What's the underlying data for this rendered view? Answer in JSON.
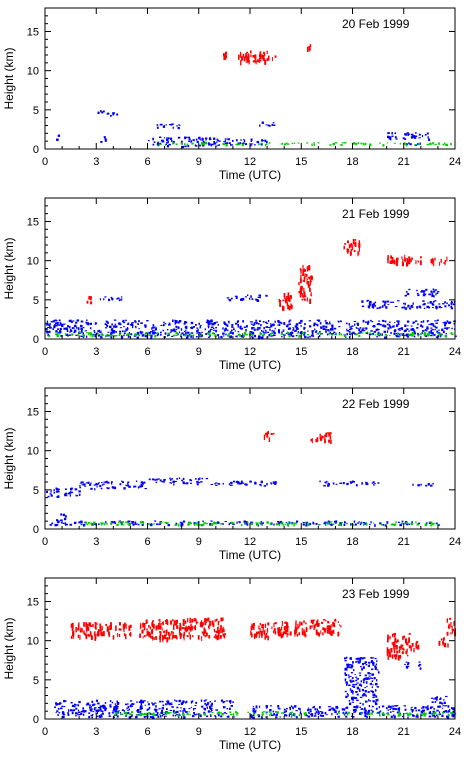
{
  "chart_data": [
    {
      "type": "scatter",
      "title": "20 Feb 1999",
      "xlabel": "Time (UTC)",
      "ylabel": "Height (km)",
      "xlim": [
        0,
        24
      ],
      "ylim": [
        0,
        18
      ],
      "xticks": [
        "0",
        "3",
        "6",
        "9",
        "12",
        "15",
        "18",
        "21",
        "24"
      ],
      "yticks": [
        "0",
        "5",
        "10",
        "15"
      ],
      "series": [
        {
          "color": "#ff0000",
          "segments": [
            {
              "x0": 10.4,
              "x1": 10.6,
              "y0": 11.8,
              "y1": 12.6
            },
            {
              "x0": 11.2,
              "x1": 13.5,
              "y0": 11.2,
              "y1": 12.6
            },
            {
              "x0": 15.3,
              "x1": 15.5,
              "y0": 13.0,
              "y1": 13.4
            }
          ]
        },
        {
          "color": "#0000ff",
          "segments": [
            {
              "x0": 0.6,
              "x1": 0.8,
              "y0": 1.2,
              "y1": 2.0
            },
            {
              "x0": 3.0,
              "x1": 4.2,
              "y0": 4.3,
              "y1": 5.0
            },
            {
              "x0": 3.2,
              "x1": 3.5,
              "y0": 1.0,
              "y1": 2.0
            },
            {
              "x0": 6.5,
              "x1": 8.5,
              "y0": 2.8,
              "y1": 3.3
            },
            {
              "x0": 6.0,
              "x1": 10.0,
              "y0": 0.4,
              "y1": 1.6
            },
            {
              "x0": 10.0,
              "x1": 13.0,
              "y0": 0.5,
              "y1": 1.4
            },
            {
              "x0": 12.5,
              "x1": 13.4,
              "y0": 3.0,
              "y1": 3.6
            },
            {
              "x0": 20.0,
              "x1": 22.5,
              "y0": 1.3,
              "y1": 2.2
            },
            {
              "x0": 21.0,
              "x1": 22.0,
              "y0": 0.5,
              "y1": 1.0
            }
          ]
        },
        {
          "color": "#00cc00",
          "segments": [
            {
              "x0": 6.0,
              "x1": 24.0,
              "y0": 0.6,
              "y1": 0.9
            }
          ]
        }
      ]
    },
    {
      "type": "scatter",
      "title": "21 Feb 1999",
      "xlabel": "Time (UTC)",
      "ylabel": "Height (km)",
      "xlim": [
        0,
        24
      ],
      "ylim": [
        0,
        18
      ],
      "xticks": [
        "0",
        "3",
        "6",
        "9",
        "12",
        "15",
        "18",
        "21",
        "24"
      ],
      "yticks": [
        "0",
        "5",
        "10",
        "15"
      ],
      "series": [
        {
          "color": "#ff0000",
          "segments": [
            {
              "x0": 2.4,
              "x1": 2.7,
              "y0": 4.5,
              "y1": 5.5
            },
            {
              "x0": 13.6,
              "x1": 14.4,
              "y0": 4.0,
              "y1": 6.0
            },
            {
              "x0": 14.8,
              "x1": 15.6,
              "y0": 5.0,
              "y1": 9.5
            },
            {
              "x0": 17.4,
              "x1": 18.4,
              "y0": 11.0,
              "y1": 12.8
            },
            {
              "x0": 20.0,
              "x1": 22.0,
              "y0": 9.8,
              "y1": 10.8
            },
            {
              "x0": 22.5,
              "x1": 23.5,
              "y0": 9.8,
              "y1": 10.6
            }
          ]
        },
        {
          "color": "#0000ff",
          "segments": [
            {
              "x0": 3.0,
              "x1": 4.6,
              "y0": 5.0,
              "y1": 5.5
            },
            {
              "x0": 10.5,
              "x1": 13.0,
              "y0": 5.0,
              "y1": 5.7
            },
            {
              "x0": 18.5,
              "x1": 24.0,
              "y0": 4.0,
              "y1": 5.0
            },
            {
              "x0": 21.0,
              "x1": 23.0,
              "y0": 5.5,
              "y1": 6.5
            },
            {
              "x0": 0.0,
              "x1": 24.0,
              "y0": 0.3,
              "y1": 2.5
            }
          ]
        },
        {
          "color": "#00cc00",
          "segments": [
            {
              "x0": 0.0,
              "x1": 24.0,
              "y0": 0.5,
              "y1": 0.9
            }
          ]
        }
      ]
    },
    {
      "type": "scatter",
      "title": "22 Feb 1999",
      "xlabel": "Time (UTC)",
      "ylabel": "Height (km)",
      "xlim": [
        0,
        24
      ],
      "ylim": [
        0,
        18
      ],
      "xticks": [
        "0",
        "3",
        "6",
        "9",
        "12",
        "15",
        "18",
        "21",
        "24"
      ],
      "yticks": [
        "0",
        "5",
        "10",
        "15"
      ],
      "series": [
        {
          "color": "#ff0000",
          "segments": [
            {
              "x0": 12.8,
              "x1": 13.4,
              "y0": 11.6,
              "y1": 12.6
            },
            {
              "x0": 15.5,
              "x1": 16.8,
              "y0": 11.4,
              "y1": 12.4
            }
          ]
        },
        {
          "color": "#0000ff",
          "segments": [
            {
              "x0": 0.0,
              "x1": 2.0,
              "y0": 4.2,
              "y1": 5.4
            },
            {
              "x0": 2.0,
              "x1": 6.0,
              "y0": 5.2,
              "y1": 6.2
            },
            {
              "x0": 6.0,
              "x1": 9.5,
              "y0": 5.8,
              "y1": 6.6
            },
            {
              "x0": 9.5,
              "x1": 13.5,
              "y0": 5.6,
              "y1": 6.2
            },
            {
              "x0": 16.0,
              "x1": 19.5,
              "y0": 5.6,
              "y1": 6.2
            },
            {
              "x0": 21.5,
              "x1": 23.0,
              "y0": 5.6,
              "y1": 6.0
            },
            {
              "x0": 0.5,
              "x1": 1.2,
              "y0": 1.0,
              "y1": 2.0
            },
            {
              "x0": 0.0,
              "x1": 23.0,
              "y0": 0.6,
              "y1": 1.1
            }
          ]
        },
        {
          "color": "#00cc00",
          "segments": [
            {
              "x0": 2.0,
              "x1": 23.0,
              "y0": 0.6,
              "y1": 1.0
            }
          ]
        }
      ]
    },
    {
      "type": "scatter",
      "title": "23 Feb 1999",
      "xlabel": "Time (UTC)",
      "ylabel": "Height (km)",
      "xlim": [
        0,
        24
      ],
      "ylim": [
        0,
        18
      ],
      "xticks": [
        "0",
        "3",
        "6",
        "9",
        "12",
        "15",
        "18",
        "21",
        "24"
      ],
      "yticks": [
        "0",
        "5",
        "10",
        "15"
      ],
      "series": [
        {
          "color": "#ff0000",
          "segments": [
            {
              "x0": 1.5,
              "x1": 5.0,
              "y0": 10.6,
              "y1": 12.4
            },
            {
              "x0": 5.5,
              "x1": 7.5,
              "y0": 10.2,
              "y1": 12.8
            },
            {
              "x0": 7.5,
              "x1": 10.5,
              "y0": 10.5,
              "y1": 13.0
            },
            {
              "x0": 12.0,
              "x1": 15.5,
              "y0": 10.6,
              "y1": 12.6
            },
            {
              "x0": 15.5,
              "x1": 17.5,
              "y0": 11.0,
              "y1": 12.8
            },
            {
              "x0": 20.0,
              "x1": 21.3,
              "y0": 8.0,
              "y1": 11.0
            },
            {
              "x0": 21.3,
              "x1": 21.8,
              "y0": 9.0,
              "y1": 10.0
            },
            {
              "x0": 23.0,
              "x1": 23.6,
              "y0": 9.5,
              "y1": 10.5
            },
            {
              "x0": 23.5,
              "x1": 24.0,
              "y0": 11.0,
              "y1": 13.0
            }
          ]
        },
        {
          "color": "#0000ff",
          "segments": [
            {
              "x0": 0.5,
              "x1": 11.0,
              "y0": 0.3,
              "y1": 2.5
            },
            {
              "x0": 12.0,
              "x1": 24.0,
              "y0": 0.3,
              "y1": 1.8
            },
            {
              "x0": 17.5,
              "x1": 19.5,
              "y0": 2.0,
              "y1": 8.0
            },
            {
              "x0": 21.0,
              "x1": 22.0,
              "y0": 6.5,
              "y1": 7.4
            },
            {
              "x0": 22.5,
              "x1": 23.5,
              "y0": 2.0,
              "y1": 3.0
            }
          ]
        },
        {
          "color": "#00cc00",
          "segments": [
            {
              "x0": 4.0,
              "x1": 24.0,
              "y0": 0.6,
              "y1": 1.0
            }
          ]
        }
      ]
    }
  ]
}
